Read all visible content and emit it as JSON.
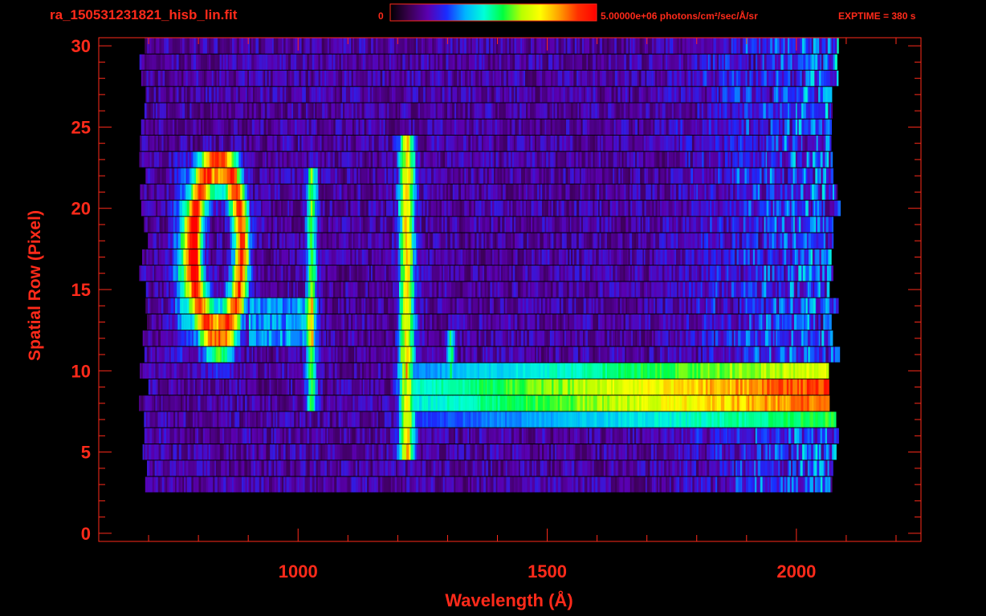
{
  "header": {
    "title": "ra_150531231821_hisb_lin.fit",
    "colorbar_min": "0",
    "colorbar_max": "5.00000e+06 photons/cm²/sec/Å/sr",
    "exptime": "EXPTIME = 380 s"
  },
  "colors": {
    "axis": "#ff2a1a",
    "background": "#000000",
    "colormap": [
      "#000000",
      "#3a0050",
      "#5a00b0",
      "#1a2cff",
      "#00b4ff",
      "#00ffd8",
      "#00ff40",
      "#b8ff00",
      "#ffff00",
      "#ffa000",
      "#ff3000",
      "#ff0000"
    ]
  },
  "chart_data": {
    "type": "heatmap",
    "title": "ra_150531231821_hisb_lin.fit",
    "xlabel": "Wavelength (Å)",
    "ylabel": "Spatial Row (Pixel)",
    "xlim": [
      600,
      2250
    ],
    "ylim": [
      -0.5,
      30.5
    ],
    "x_ticks": [
      1000,
      1500,
      2000
    ],
    "x_minor_ticks": [
      700,
      800,
      900,
      1100,
      1200,
      1300,
      1400,
      1600,
      1700,
      1800,
      1900,
      2100,
      2200
    ],
    "y_ticks": [
      0,
      5,
      10,
      15,
      20,
      25,
      30
    ],
    "y_minor_tick_step": 1,
    "x_range_data": [
      690,
      2070
    ],
    "rows_with_signal": [
      3,
      30
    ],
    "colorbar": {
      "min": 0,
      "max": 5000000,
      "units": "photons/cm²/sec/Å/sr",
      "colormap": "rainbow"
    },
    "features": [
      {
        "wavelength_center": 832,
        "wavelength_range": [
          770,
          900
        ],
        "rows": [
          10,
          23
        ],
        "peak_rows": [
          14,
          21
        ],
        "peak_level": 0.9
      },
      {
        "wavelength_center": 1025,
        "wavelength_range": [
          1015,
          1035
        ],
        "rows": [
          8,
          22
        ],
        "peak_level": 0.4
      },
      {
        "wavelength_center": 1216,
        "wavelength_range": [
          1200,
          1230
        ],
        "rows": [
          5,
          24
        ],
        "peak_level": 0.65
      },
      {
        "wavelength_center": 1304,
        "wavelength_range": [
          1298,
          1310
        ],
        "rows": [
          8,
          12
        ],
        "peak_level": 0.35
      },
      {
        "continuum_range": [
          1216,
          2070
        ],
        "rows": [
          7,
          10
        ],
        "level_start": 0.45,
        "level_end": 0.95
      }
    ]
  }
}
